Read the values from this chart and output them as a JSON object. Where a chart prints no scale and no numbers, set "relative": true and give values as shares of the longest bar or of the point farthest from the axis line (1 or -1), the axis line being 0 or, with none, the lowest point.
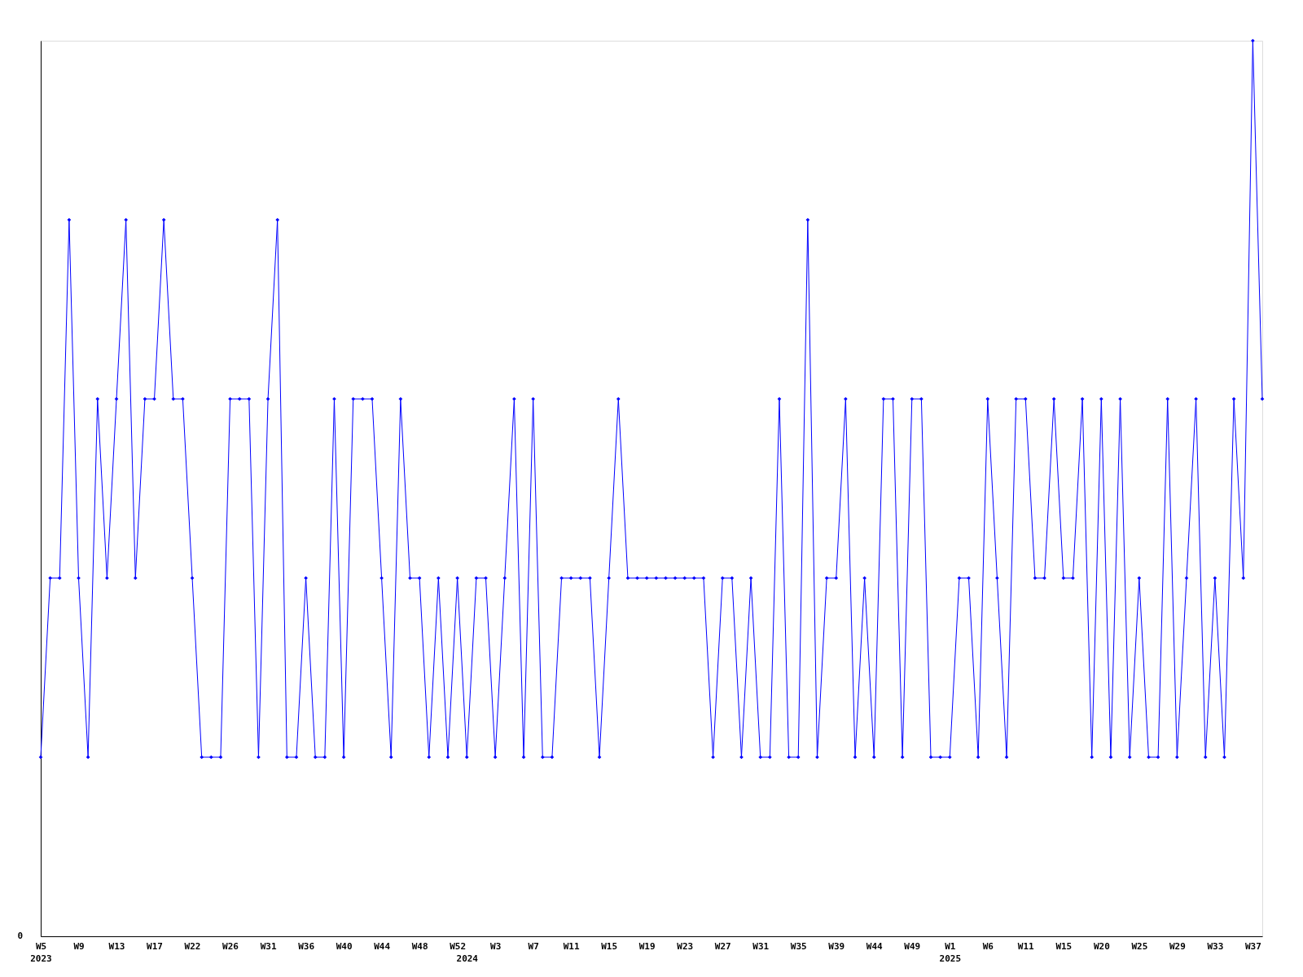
{
  "chart_data": {
    "type": "line",
    "categories": [
      "W5\n2023",
      null,
      null,
      null,
      "W9",
      null,
      null,
      null,
      "W13",
      null,
      null,
      null,
      "W17",
      null,
      null,
      null,
      "W22",
      null,
      null,
      null,
      "W26",
      null,
      null,
      null,
      "W31",
      null,
      null,
      null,
      "W36",
      null,
      null,
      null,
      "W40",
      null,
      null,
      null,
      "W44",
      null,
      null,
      null,
      "W48",
      null,
      null,
      null,
      "W52",
      "\n2024",
      null,
      null,
      "W3",
      null,
      null,
      null,
      "W7",
      null,
      null,
      null,
      "W11",
      null,
      null,
      null,
      "W15",
      null,
      null,
      null,
      "W19",
      null,
      null,
      null,
      "W23",
      null,
      null,
      null,
      "W27",
      null,
      null,
      null,
      "W31",
      null,
      null,
      null,
      "W35",
      null,
      null,
      null,
      "W39",
      null,
      null,
      null,
      "W44",
      null,
      null,
      null,
      "W49",
      null,
      null,
      null,
      "W1\n2025",
      null,
      null,
      null,
      "W6",
      null,
      null,
      null,
      "W11",
      null,
      null,
      null,
      "W15",
      null,
      null,
      null,
      "W20",
      null,
      null,
      null,
      "W25",
      null,
      null,
      null,
      "W29",
      null,
      null,
      null,
      "W33",
      null,
      null,
      null,
      "W37",
      null
    ],
    "series": [
      {
        "color": "#0000ff",
        "values": [
          0.2,
          0.4,
          0.4,
          0.8,
          0.4,
          0.2,
          0.6,
          0.4,
          0.6,
          0.8,
          0.4,
          0.6,
          0.6,
          0.8,
          0.6,
          0.6,
          0.4,
          0.2,
          0.2,
          0.2,
          0.6,
          0.6,
          0.6,
          0.2,
          0.6,
          0.8,
          0.2,
          0.2,
          0.4,
          0.2,
          0.2,
          0.6,
          0.2,
          0.6,
          0.6,
          0.6,
          0.4,
          0.2,
          0.6,
          0.4,
          0.4,
          0.2,
          0.4,
          0.2,
          0.4,
          0.2,
          0.4,
          0.4,
          0.2,
          0.4,
          0.6,
          0.2,
          0.6,
          0.2,
          0.2,
          0.4,
          0.4,
          0.4,
          0.4,
          0.2,
          0.4,
          0.6,
          0.4,
          0.4,
          0.4,
          0.4,
          0.4,
          0.4,
          0.4,
          0.4,
          0.4,
          0.2,
          0.4,
          0.4,
          0.2,
          0.4,
          0.2,
          0.2,
          0.6,
          0.2,
          0.2,
          0.8,
          0.2,
          0.4,
          0.4,
          0.6,
          0.2,
          0.4,
          0.2,
          0.6,
          0.6,
          0.2,
          0.6,
          0.6,
          0.2,
          0.2,
          0.2,
          0.4,
          0.4,
          0.2,
          0.6,
          0.4,
          0.2,
          0.6,
          0.6,
          0.4,
          0.4,
          0.6,
          0.4,
          0.4,
          0.6,
          0.2,
          0.6,
          0.2,
          0.6,
          0.2,
          0.4,
          0.2,
          0.2,
          0.6,
          0.2,
          0.4,
          0.6,
          0.2,
          0.4,
          0.2,
          0.6,
          0.4,
          1.0,
          0.6
        ]
      }
    ],
    "relative": true,
    "annotations": [
      "0"
    ],
    "marker": "diamond",
    "line_style": "solid"
  }
}
